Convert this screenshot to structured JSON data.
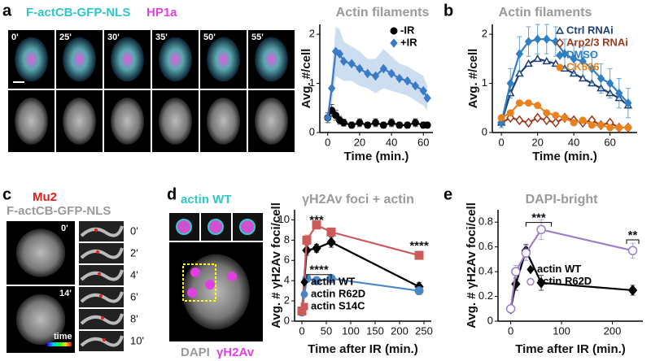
{
  "panels": {
    "a": {
      "letter": "a",
      "label_green": "F-actCB-GFP-NLS",
      "label_magenta": "HP1a",
      "times": [
        "0'",
        "25'",
        "30'",
        "35'",
        "50'",
        "55'"
      ]
    },
    "b": {
      "letter": "b"
    },
    "c": {
      "letter": "c",
      "label_red": "Mu2",
      "label_gray": "F-actCB-GFP-NLS",
      "main_times": [
        "0'",
        "14'"
      ],
      "colorbar_label": "time",
      "inset_times": [
        "0'",
        "2'",
        "4'",
        "6'",
        "8'",
        "10'"
      ]
    },
    "d": {
      "letter": "d",
      "label_top": "actin WT",
      "label_dapi": "DAPI",
      "label_h2av": "γH2Av"
    },
    "e": {
      "letter": "e"
    }
  },
  "chart_data": [
    {
      "type": "line",
      "title": "Actin filaments",
      "xlabel": "Time (min.)",
      "ylabel": "Avg. #/cell",
      "x": [
        0,
        2.5,
        5,
        7.5,
        10,
        15,
        20,
        25,
        30,
        35,
        40,
        45,
        50,
        55,
        60,
        62.5
      ],
      "xlim": [
        -5,
        66
      ],
      "xticks": [
        0,
        20,
        40,
        60
      ],
      "ylim": [
        0,
        2.2
      ],
      "yticks": [
        0,
        1,
        2
      ],
      "legend": "upper right",
      "series": [
        {
          "name": "-IR",
          "color": "#000000",
          "marker": "circle",
          "values": [
            0.3,
            0.45,
            0.35,
            0.25,
            0.2,
            0.15,
            0.2,
            0.15,
            0.2,
            0.15,
            0.2,
            0.15,
            0.15,
            0.2,
            0.15,
            0.15
          ],
          "errors": [
            0.1,
            0.12,
            0.1,
            0.08,
            0.07,
            0.06,
            0.08,
            0.06,
            0.08,
            0.06,
            0.08,
            0.06,
            0.06,
            0.08,
            0.06,
            0.06
          ]
        },
        {
          "name": "+IR",
          "color": "#3a7bc8",
          "marker": "diamond",
          "error_band": true,
          "values": [
            0.3,
            0.9,
            1.65,
            1.6,
            1.45,
            1.4,
            1.3,
            1.2,
            1.15,
            1.3,
            1.2,
            1.1,
            1.05,
            0.95,
            0.85,
            0.7
          ],
          "errors": [
            0.1,
            0.3,
            0.5,
            0.5,
            0.4,
            0.35,
            0.35,
            0.3,
            0.35,
            0.4,
            0.35,
            0.3,
            0.3,
            0.3,
            0.3,
            0.25
          ]
        }
      ]
    },
    {
      "type": "line",
      "title": "Actin filaments",
      "xlabel": "Time (min.)",
      "ylabel": "Avg. #/cell",
      "x": [
        0,
        5,
        10,
        15,
        20,
        25,
        30,
        35,
        40,
        45,
        50,
        55,
        60,
        65,
        70
      ],
      "xlim": [
        -5,
        75
      ],
      "xticks": [
        0,
        20,
        40,
        60
      ],
      "ylim": [
        0,
        2.2
      ],
      "yticks": [
        0,
        1,
        2
      ],
      "legend": "upper right",
      "legend_text_colored": true,
      "series": [
        {
          "name": "Ctrl RNAi",
          "color": "#1f3e73",
          "marker": "triangle-open",
          "values": [
            0.2,
            0.8,
            1.2,
            1.4,
            1.5,
            1.45,
            1.4,
            1.3,
            1.2,
            1.1,
            1.0,
            0.9,
            0.8,
            0.7,
            0.55
          ]
        },
        {
          "name": "Arp2/3 RNAi",
          "color": "#9b3a1a",
          "marker": "diamond-open",
          "values": [
            0.2,
            0.3,
            0.25,
            0.2,
            0.3,
            0.25,
            0.2,
            0.3,
            0.25,
            0.2,
            0.25,
            0.15,
            0.2,
            0.1,
            0.1
          ]
        },
        {
          "name": "DMSO",
          "color": "#2e7fc4",
          "marker": "diamond",
          "values": [
            0.2,
            1.0,
            1.6,
            1.85,
            1.9,
            1.9,
            1.85,
            1.6,
            1.5,
            1.45,
            1.3,
            1.1,
            1.0,
            0.8,
            0.6
          ],
          "errors": [
            0.1,
            0.3,
            0.35,
            0.3,
            0.3,
            0.3,
            0.3,
            0.3,
            0.3,
            0.3,
            0.3,
            0.3,
            0.3,
            0.3,
            0.3
          ]
        },
        {
          "name": "CK666",
          "color": "#e8821e",
          "marker": "circle",
          "values": [
            0.3,
            0.4,
            0.6,
            0.6,
            0.55,
            0.4,
            0.35,
            0.3,
            0.2,
            0.25,
            0.15,
            0.15,
            0.1,
            0.1,
            0.1
          ]
        }
      ]
    },
    {
      "type": "line",
      "title": "γH2Av foci + actin",
      "xlabel": "Time after IR (min.)",
      "ylabel": "Avg. # γH2Av foci/cell",
      "x": [
        0,
        10,
        30,
        60,
        240
      ],
      "xlim": [
        -15,
        265
      ],
      "xticks": [
        0,
        50,
        100,
        150,
        200,
        250
      ],
      "ylim": [
        0,
        11
      ],
      "yticks": [
        0,
        2,
        4,
        6,
        8,
        10
      ],
      "legend": "lower left",
      "annotations": [
        "***",
        "****",
        "****"
      ],
      "series": [
        {
          "name": "actin WT",
          "color": "#000000",
          "marker": "diamond",
          "values": [
            1,
            7,
            7.2,
            7.8,
            3.4
          ],
          "errors": [
            0.2,
            0.5,
            0.4,
            0.5,
            0.4
          ]
        },
        {
          "name": "actin R62D",
          "color": "#4a86c8",
          "marker": "circle",
          "values": [
            0.9,
            4.2,
            4.0,
            4.2,
            3.0
          ],
          "errors": [
            0.2,
            0.3,
            0.3,
            0.4,
            0.3
          ]
        },
        {
          "name": "actin S14C",
          "color": "#cc5a5a",
          "marker": "square",
          "values": [
            1.0,
            8.0,
            9.5,
            8.8,
            6.5
          ],
          "errors": [
            0.2,
            0.5,
            0.4,
            0.4,
            0.4
          ]
        }
      ]
    },
    {
      "type": "line",
      "title": "DAPI-bright",
      "xlabel": "Time after IR (min.)",
      "ylabel": "Avg. # γH2Av foci/cell",
      "x": [
        0,
        10,
        30,
        60,
        240
      ],
      "xlim": [
        -25,
        260
      ],
      "xticks": [
        0,
        100,
        200
      ],
      "ylim": [
        0,
        0.9
      ],
      "yticks": [
        0,
        0.2,
        0.4,
        0.6,
        0.8
      ],
      "legend": "right",
      "annotations": [
        "***",
        "**"
      ],
      "series": [
        {
          "name": "actin WT",
          "color": "#000000",
          "marker": "diamond",
          "values": [
            0.1,
            0.3,
            0.57,
            0.31,
            0.25
          ],
          "errors": [
            0.02,
            0.05,
            0.05,
            0.06,
            0.04
          ]
        },
        {
          "name": "actin R62D",
          "color": "#9b7fc8",
          "marker": "circle-open",
          "values": [
            0.1,
            0.4,
            0.55,
            0.74,
            0.57
          ],
          "errors": [
            0.02,
            0.05,
            0.06,
            0.08,
            0.06
          ]
        }
      ]
    }
  ]
}
